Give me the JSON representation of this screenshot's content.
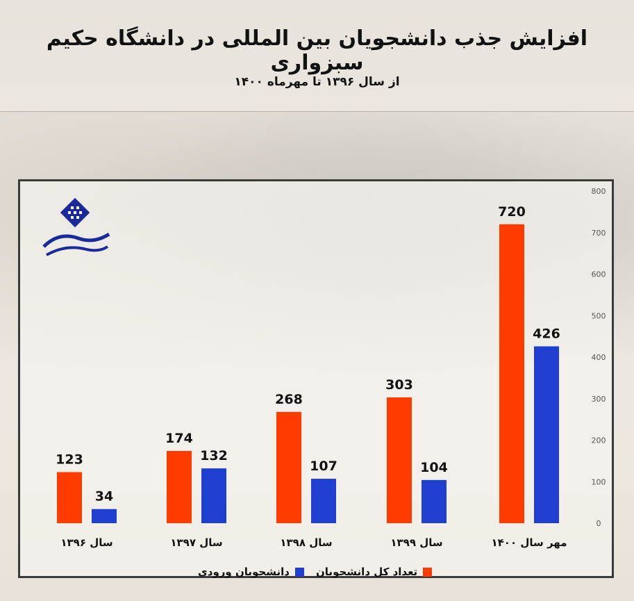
{
  "header": {
    "title": "افزایش جذب دانشجویان بین المللی در دانشگاه حکیم سبزواری",
    "subtitle": "از سال ۱۳۹۶ تا مهرماه ۱۴۰۰"
  },
  "colors": {
    "total": "#ff3c00",
    "incoming": "#1f3fd0"
  },
  "chart_data": {
    "type": "bar",
    "categories": [
      "سال ۱۳۹۶",
      "سال ۱۳۹۷",
      "سال ۱۳۹۸",
      "سال ۱۳۹۹",
      "مهر سال ۱۴۰۰"
    ],
    "series": [
      {
        "name": "تعداد کل دانشجویان",
        "values": [
          123,
          174,
          268,
          303,
          720
        ]
      },
      {
        "name": "دانشجویان ورودی",
        "values": [
          34,
          132,
          107,
          104,
          426
        ]
      }
    ],
    "value_labels": {
      "total": [
        "123",
        "174",
        "268",
        "303",
        "720"
      ],
      "incoming": [
        "34",
        "132",
        "107",
        "104",
        "426"
      ]
    },
    "ylim": [
      0,
      800
    ],
    "yticks": [
      "0",
      "100",
      "200",
      "300",
      "400",
      "500",
      "600",
      "700",
      "800"
    ],
    "y_axis_side": "right",
    "legend": [
      "تعداد کل دانشجویان",
      "دانشجویان ورودی"
    ],
    "legend_position": "bottom",
    "grid": false
  }
}
